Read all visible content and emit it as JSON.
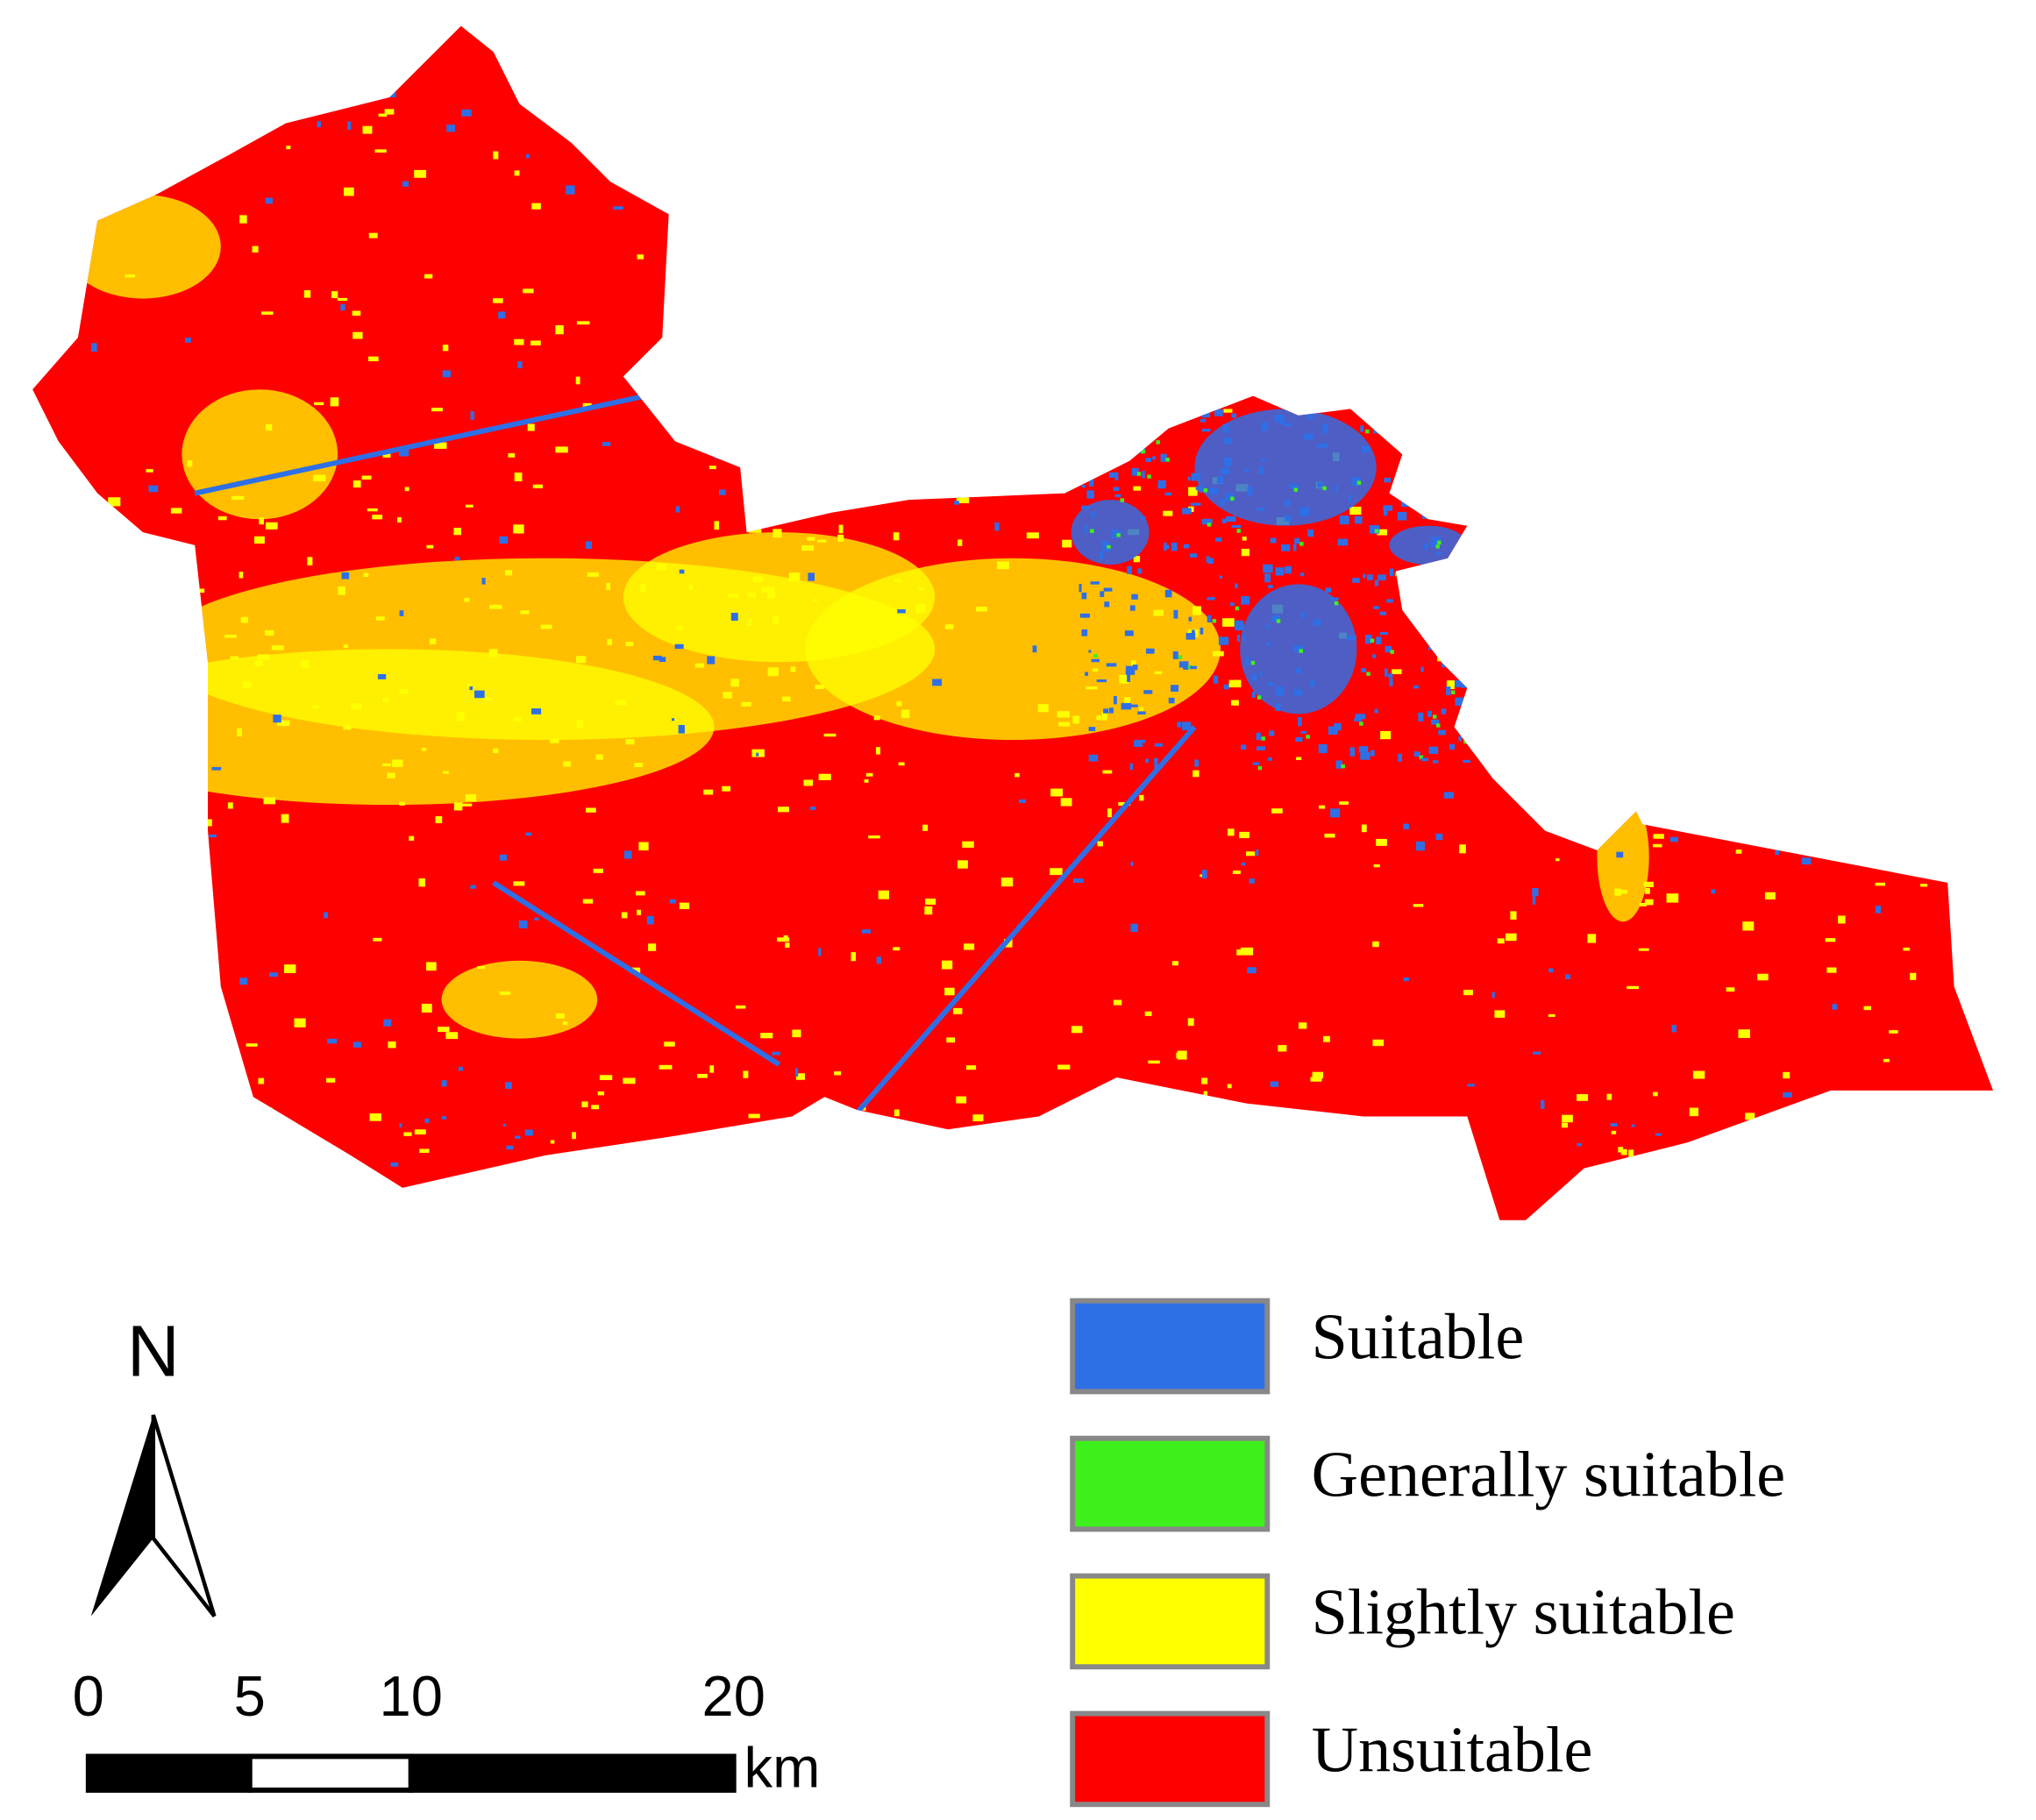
{
  "legend": {
    "items": [
      {
        "label": "Suitable",
        "color": "#2f6fe6"
      },
      {
        "label": "Generally suitable",
        "color": "#3ef01c"
      },
      {
        "label": "Slightly suitable",
        "color": "#ffff00"
      },
      {
        "label": "Unsuitable",
        "color": "#ff0000"
      }
    ]
  },
  "north_arrow": {
    "label": "N"
  },
  "scale_bar": {
    "ticks": [
      0,
      5,
      10,
      20
    ],
    "unit": "km"
  }
}
